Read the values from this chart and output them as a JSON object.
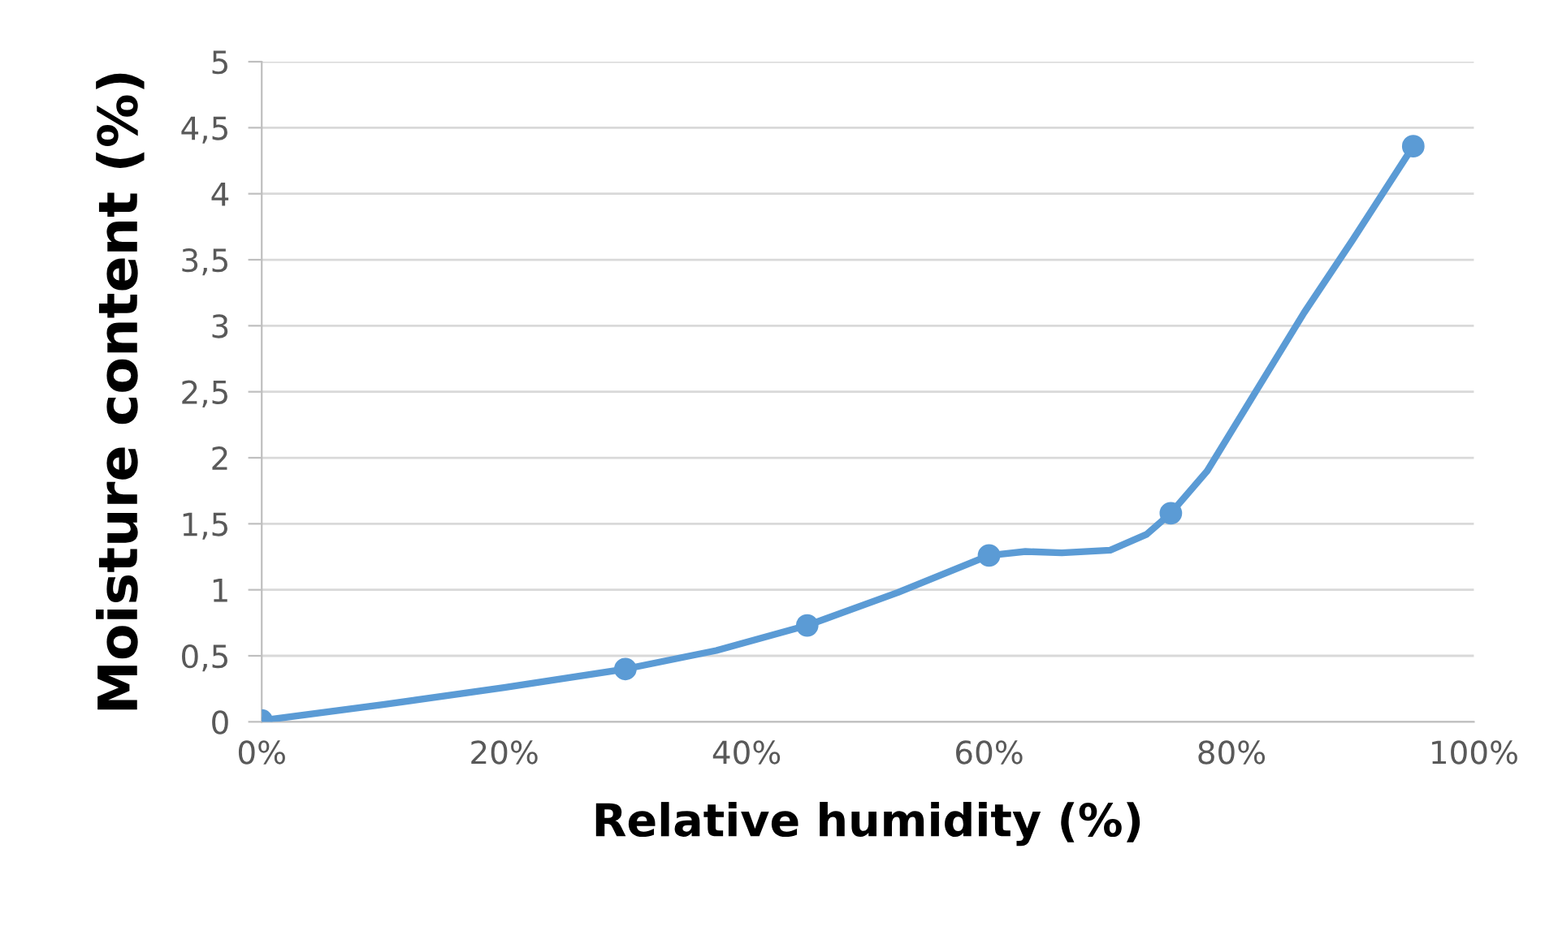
{
  "chart_data": {
    "type": "line",
    "xlabel": "Relative humidity (%)",
    "ylabel": "Moisture content (%)",
    "x": [
      0,
      30,
      45,
      60,
      75,
      95
    ],
    "series": [
      {
        "color": "#5b9bd5",
        "marker": "none",
        "x": [
          0,
          10,
          20,
          30,
          37.5,
          45,
          52.5,
          60,
          63,
          66,
          70,
          73,
          75,
          78,
          82,
          86,
          90,
          95
        ],
        "values": [
          0.01,
          0.13,
          0.26,
          0.4,
          0.54,
          0.73,
          0.98,
          1.26,
          1.29,
          1.28,
          1.3,
          1.42,
          1.58,
          1.9,
          2.5,
          3.1,
          3.65,
          4.36
        ]
      },
      {
        "type": "scatter",
        "color": "#5b9bd5",
        "marker": "circle",
        "values": [
          0.01,
          0.4,
          0.73,
          1.26,
          1.58,
          4.36
        ]
      }
    ],
    "xlim": [
      0,
      100
    ],
    "xticks": [
      {
        "value": 0,
        "label": "0%"
      },
      {
        "value": 20,
        "label": "20%"
      },
      {
        "value": 40,
        "label": "40%"
      },
      {
        "value": 60,
        "label": "60%"
      },
      {
        "value": 80,
        "label": "80%"
      },
      {
        "value": 100,
        "label": "100%"
      }
    ],
    "ylim": [
      0,
      5
    ],
    "yticks": [
      0,
      {
        "value": 0.5,
        "label": "0,5"
      },
      1,
      {
        "value": 1.5,
        "label": "1,5"
      },
      2,
      {
        "value": 2.5,
        "label": "2,5"
      },
      3,
      {
        "value": 3.5,
        "label": "3,5"
      },
      4,
      {
        "value": 4.5,
        "label": "4,5"
      },
      5
    ],
    "grid": "y",
    "line_style": "solid"
  }
}
